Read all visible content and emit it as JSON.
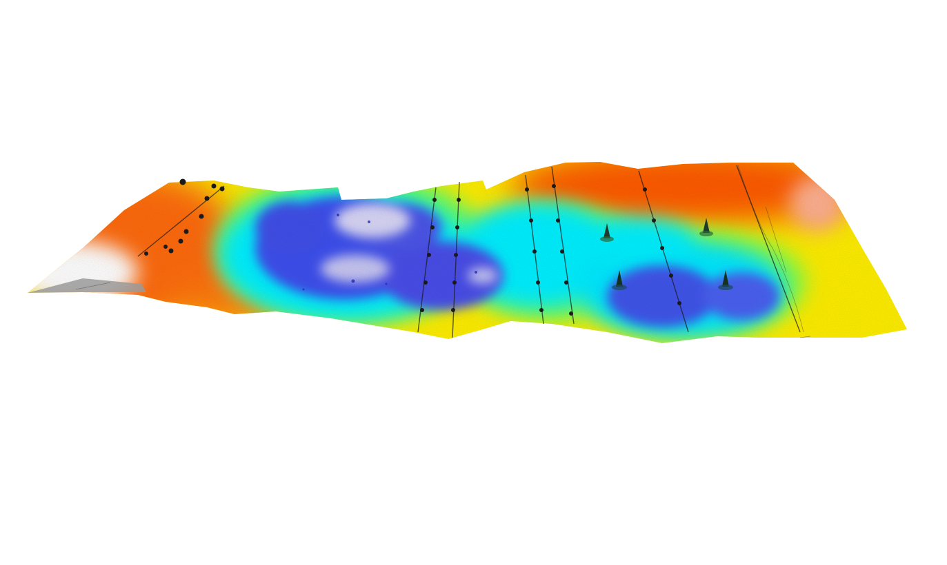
{
  "scene": {
    "background": "#ffffff",
    "view": "3d-perspective-heightmap",
    "colormap": {
      "name": "rainbow-elevation",
      "stops": [
        "#8a8a8a",
        "#f0f0f0",
        "#ffffff",
        "#ff8c5a",
        "#ff5a00",
        "#ff9a00",
        "#ffd800",
        "#ffff00",
        "#b6ff33",
        "#33ff88",
        "#00ffff",
        "#00c8ff",
        "#3c5af0",
        "#6a60e8",
        "#d8d8f8"
      ],
      "high_color": "#ff5a00",
      "mid_color": "#ffff00",
      "low_color": "#3c5af0",
      "lowest_color": "#d8d8f8",
      "edge_color": "#8a8a8a"
    },
    "features": {
      "marker_color": "#1a1a1a",
      "marker_row_count": 5,
      "spike_count": 4,
      "crack_color": "#333333"
    }
  }
}
